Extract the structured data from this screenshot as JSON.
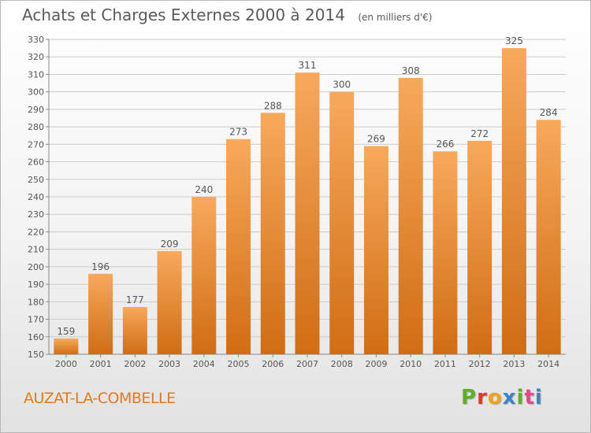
{
  "header": {
    "title": "Achats et Charges Externes 2000 à 2014",
    "subtitle": "(en milliers d'€)"
  },
  "footer": {
    "place": "AUZAT-LA-COMBELLE",
    "brand": "Proxiti"
  },
  "colors": {
    "bar_top": "#f7a95c",
    "bar_bottom": "#d06d14",
    "grid": "#cccccc",
    "text": "#555555",
    "brand_letters": [
      "#5fae2c",
      "#d93a2a",
      "#f0a21a",
      "#3b82c6",
      "#5fae2c",
      "#e04a8a",
      "#3b82c6"
    ]
  },
  "chart_data": {
    "type": "bar",
    "categories": [
      "2000",
      "2001",
      "2002",
      "2003",
      "2004",
      "2005",
      "2006",
      "2007",
      "2008",
      "2009",
      "2010",
      "2011",
      "2012",
      "2013",
      "2014"
    ],
    "values": [
      159,
      196,
      177,
      209,
      240,
      273,
      288,
      311,
      300,
      269,
      308,
      266,
      272,
      325,
      284
    ],
    "ylim": [
      150,
      330
    ],
    "yticks": [
      150,
      160,
      170,
      180,
      190,
      200,
      210,
      220,
      230,
      240,
      250,
      260,
      270,
      280,
      290,
      300,
      310,
      320,
      330
    ],
    "grid": true,
    "data_labels": true
  }
}
